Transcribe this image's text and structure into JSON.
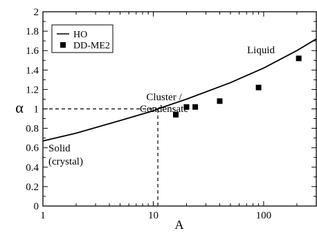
{
  "chart_data": {
    "type": "line",
    "xlabel": "A",
    "ylabel": "α",
    "xscale": "log",
    "xlim": [
      1,
      300
    ],
    "ylim": [
      0,
      2
    ],
    "x_ticks": [
      1,
      10,
      100
    ],
    "x_tick_labels": [
      "1",
      "10",
      "100"
    ],
    "y_ticks": [
      0,
      0.2,
      0.4,
      0.6,
      0.8,
      1,
      1.2,
      1.4,
      1.6,
      1.8,
      2
    ],
    "y_tick_labels": [
      "0",
      "0.2",
      "0.4",
      "0.6",
      "0.8",
      "1",
      "1.2",
      "1.4",
      "1.6",
      "1.8",
      "2"
    ],
    "grid": false,
    "legend_position": "top-left",
    "series": [
      {
        "name": "HO",
        "style": "line",
        "x": [
          1,
          2,
          5,
          10,
          11,
          20,
          50,
          100,
          200,
          300
        ],
        "y": [
          0.67,
          0.75,
          0.88,
          0.98,
          1.0,
          1.1,
          1.27,
          1.42,
          1.6,
          1.72
        ]
      },
      {
        "name": "DD-ME2",
        "style": "square-marker",
        "x": [
          16,
          20,
          24,
          40,
          90,
          208
        ],
        "y": [
          0.94,
          1.02,
          1.02,
          1.08,
          1.22,
          1.52
        ]
      }
    ],
    "reference_lines": [
      {
        "orientation": "horizontal",
        "y": 1,
        "x_from": 1,
        "x_to": 11,
        "style": "dashed"
      },
      {
        "orientation": "vertical",
        "x": 11,
        "y_from": 0,
        "y_to": 1,
        "style": "dashed"
      }
    ],
    "annotations": [
      {
        "name": "cluster",
        "lines": [
          "Cluster /",
          "Condensate"
        ],
        "x": 20,
        "y": 1.2
      },
      {
        "name": "liquid",
        "lines": [
          "Liquid"
        ],
        "x": 100,
        "y": 1.55
      },
      {
        "name": "solid",
        "lines": [
          "Solid",
          "(crystal)"
        ],
        "x": 1.1,
        "y": 0.57
      }
    ]
  }
}
